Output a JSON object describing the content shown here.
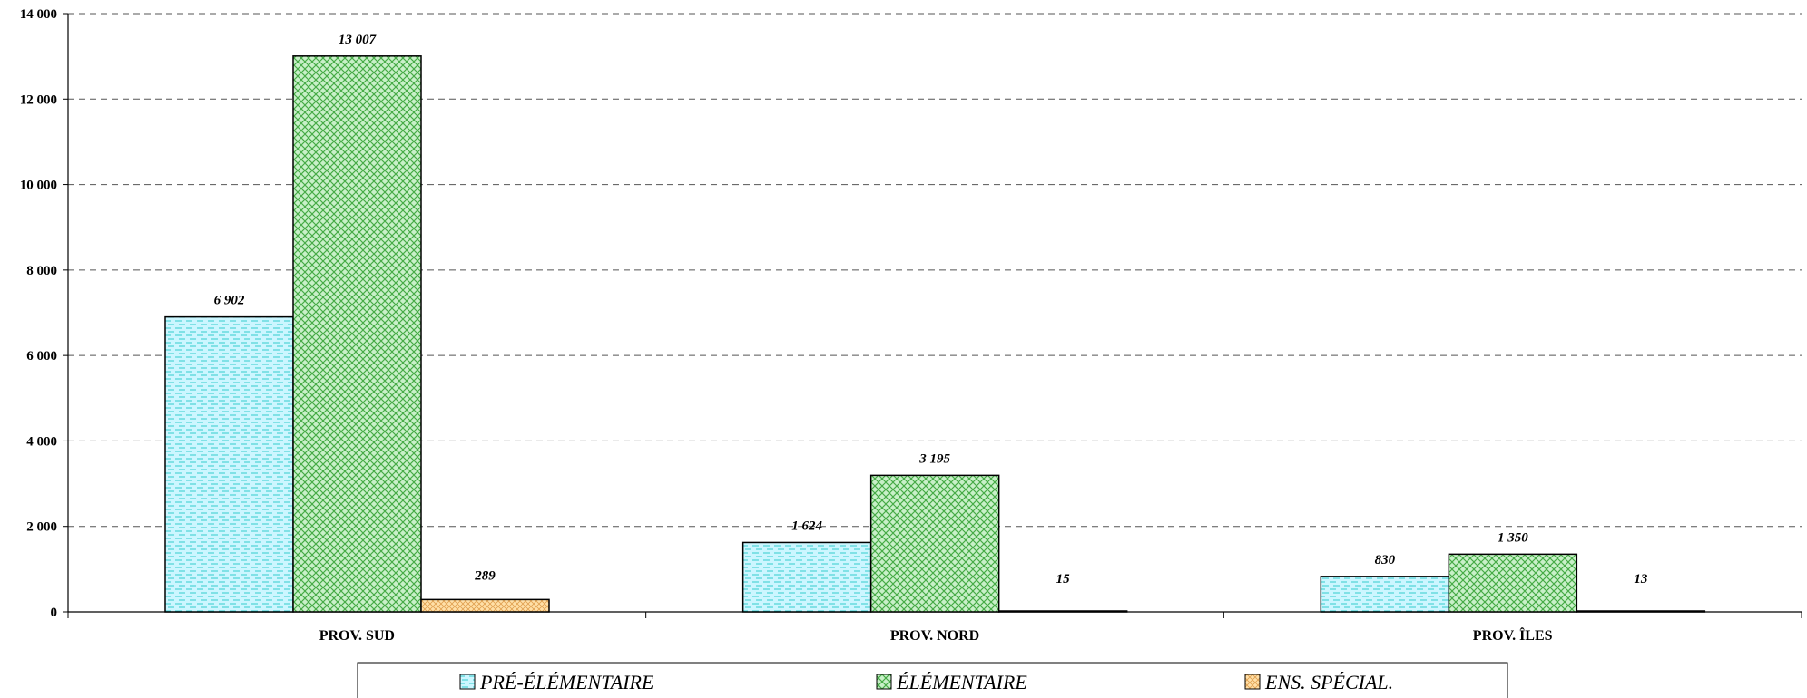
{
  "chart_data": {
    "type": "bar",
    "categories": [
      "PROV. SUD",
      "PROV. NORD",
      "PROV. ÎLES"
    ],
    "series": [
      {
        "name": "PRÉ-ÉLÉMENTAIRE",
        "values": [
          6902,
          1624,
          830
        ],
        "labels": [
          "6 902",
          "1 624",
          "830"
        ],
        "color": "#ccf6ff",
        "pattern_color": "#33cccc"
      },
      {
        "name": "ÉLÉMENTAIRE",
        "values": [
          13007,
          3195,
          1350
        ],
        "labels": [
          "13 007",
          "3 195",
          "1 350"
        ],
        "color": "#c8f0c8",
        "pattern_color": "#44aa44"
      },
      {
        "name": "ENS. SPÉCIAL.",
        "values": [
          289,
          15,
          13
        ],
        "labels": [
          "289",
          "15",
          "13"
        ],
        "color": "#ffe0a8",
        "pattern_color": "#e0a050"
      }
    ],
    "ylim": [
      0,
      14000
    ],
    "yticks": [
      0,
      2000,
      4000,
      6000,
      8000,
      10000,
      12000,
      14000
    ],
    "ytick_labels": [
      "0",
      "2 000",
      "4 000",
      "6 000",
      "8 000",
      "10 000",
      "12 000",
      "14 000"
    ],
    "grid": true,
    "legend_position": "bottom",
    "title": "",
    "xlabel": "",
    "ylabel": ""
  }
}
